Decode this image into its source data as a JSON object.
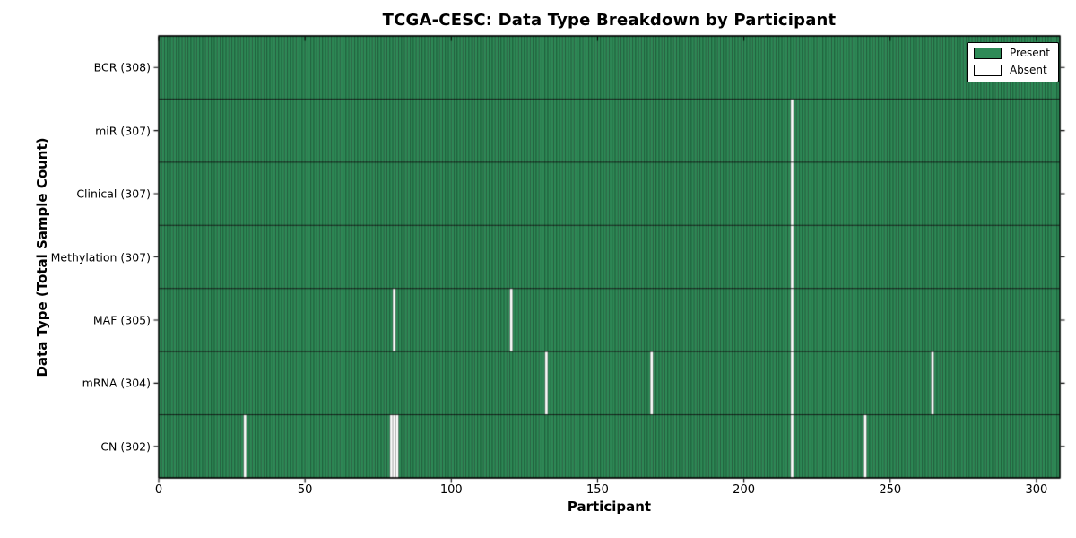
{
  "chart_data": {
    "type": "heatmap",
    "title": "TCGA-CESC: Data Type Breakdown by Participant",
    "xlabel": "Participant",
    "ylabel": "Data Type (Total Sample Count)",
    "n_participants": 308,
    "xlim": [
      0,
      308
    ],
    "x_ticks": [
      0,
      50,
      100,
      150,
      200,
      250,
      300
    ],
    "grid": false,
    "colors": {
      "present": "#2e8b57",
      "absent": "#ffffff",
      "bar_edge": "#000000",
      "background": "#ffffff"
    },
    "legend": {
      "position": "upper right",
      "entries": [
        {
          "label": "Present",
          "color": "#2e8b57"
        },
        {
          "label": "Absent",
          "color": "#ffffff"
        }
      ]
    },
    "rows": [
      {
        "label": "BCR (308)",
        "data_type": "BCR",
        "total": 308,
        "absent_participants": []
      },
      {
        "label": "miR (307)",
        "data_type": "miR",
        "total": 307,
        "absent_participants": [
          216
        ]
      },
      {
        "label": "Clinical (307)",
        "data_type": "Clinical",
        "total": 307,
        "absent_participants": [
          216
        ]
      },
      {
        "label": "Methylation (307)",
        "data_type": "Methylation",
        "total": 307,
        "absent_participants": [
          216
        ]
      },
      {
        "label": "MAF (305)",
        "data_type": "MAF",
        "total": 305,
        "absent_participants": [
          80,
          120,
          216
        ]
      },
      {
        "label": "mRNA (304)",
        "data_type": "mRNA",
        "total": 304,
        "absent_participants": [
          132,
          168,
          216,
          264
        ]
      },
      {
        "label": "CN (302)",
        "data_type": "CN",
        "total": 302,
        "absent_participants": [
          29,
          79,
          80,
          81,
          216,
          241
        ]
      }
    ]
  }
}
